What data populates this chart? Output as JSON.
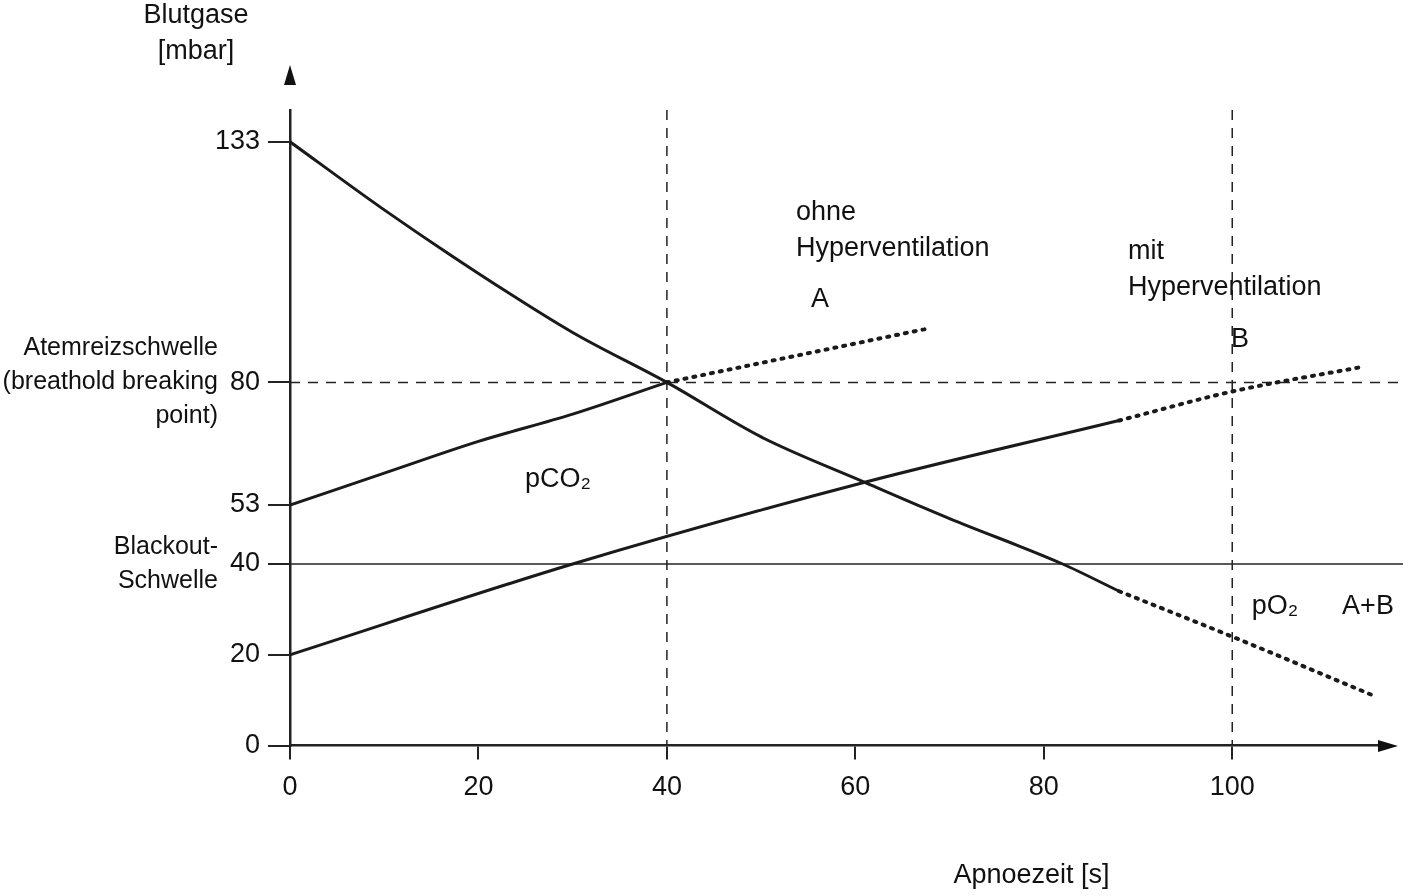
{
  "chart_data": {
    "type": "line",
    "ylabel": "Blutgase\n[mbar]",
    "xlabel": "Apnoezeit [s]",
    "xlim": [
      0,
      116
    ],
    "xticks": [
      0,
      20,
      40,
      60,
      80,
      100
    ],
    "ylim": [
      0,
      140
    ],
    "yticks": [
      0,
      20,
      40,
      53,
      80,
      133
    ],
    "series": [
      {
        "color": "#1a1a1a",
        "line_style": "solid",
        "x": [
          0,
          10,
          20,
          30,
          40,
          50,
          61,
          70,
          82,
          88
        ],
        "values": [
          133,
          118,
          104,
          91,
          80,
          68,
          58,
          50,
          40,
          34
        ]
      },
      {
        "color": "#1a1a1a",
        "line_style": "dotted",
        "x": [
          88,
          100,
          115
        ],
        "values": [
          34,
          24,
          11
        ]
      },
      {
        "color": "#1a1a1a",
        "line_style": "solid",
        "x": [
          0,
          10,
          20,
          30,
          40
        ],
        "values": [
          53,
          60,
          67,
          73,
          80
        ]
      },
      {
        "color": "#1a1a1a",
        "line_style": "dotted",
        "x": [
          40,
          68
        ],
        "values": [
          80,
          92
        ]
      },
      {
        "color": "#1a1a1a",
        "line_style": "solid",
        "x": [
          0,
          30,
          61,
          88
        ],
        "values": [
          20,
          40,
          58,
          71.6
        ]
      },
      {
        "color": "#1a1a1a",
        "line_style": "dotted",
        "x": [
          88,
          100,
          114
        ],
        "values": [
          71.6,
          78,
          83.5
        ]
      }
    ],
    "ref_lines": [
      {
        "axis": "y",
        "value": 80,
        "label": "Atemreizschwelle\n(breathold breaking\npoint)",
        "line_style": "dashed"
      },
      {
        "axis": "y",
        "value": 40,
        "label": "Blackout-\nSchwelle",
        "line_style": "solid"
      },
      {
        "axis": "x",
        "value": 40,
        "line_style": "dashed"
      },
      {
        "axis": "x",
        "value": 100,
        "line_style": "dashed"
      }
    ],
    "annotations": [
      "ohne\nHyperventilation",
      "A",
      "mit\nHyperventilation",
      "B",
      "pCO₂",
      "pO₂",
      "A+B"
    ],
    "grid": false,
    "legend": false,
    "marker": "none"
  }
}
